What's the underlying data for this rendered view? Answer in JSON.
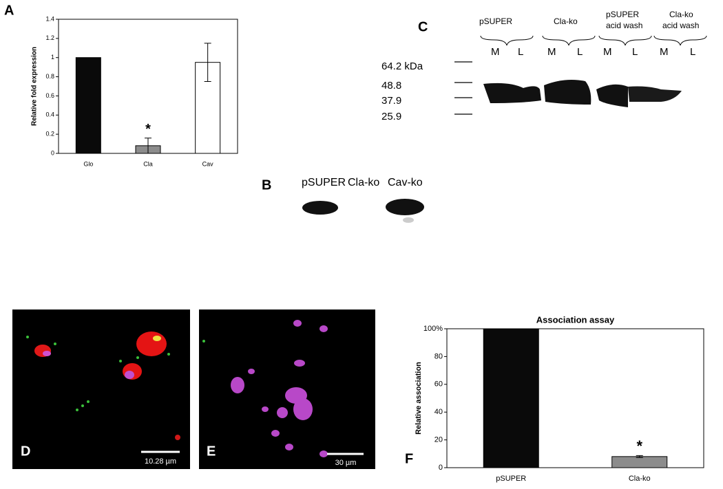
{
  "chart_data": [
    {
      "type": "bar",
      "ylabel": "Relative fold expression",
      "categories": [
        "Glo",
        "Cla",
        "Cav"
      ],
      "values": [
        1,
        0.08,
        0.95
      ],
      "errors": [
        null,
        0.08,
        0.2
      ],
      "colors": [
        "#0a0a0a",
        "#8c8c8c",
        "#ffffff"
      ],
      "ylim": [
        0,
        1.4
      ],
      "yticks": [
        0,
        0.2,
        0.4,
        0.6,
        0.8,
        1,
        1.2,
        1.4
      ],
      "annotations": [
        null,
        "*",
        null
      ]
    },
    {
      "type": "bar",
      "title": "Association assay",
      "ylabel": "Relative association",
      "categories": [
        "pSUPER",
        "Cla-ko"
      ],
      "values": [
        100,
        8
      ],
      "errors": [
        null,
        0.7
      ],
      "colors": [
        "#0a0a0a",
        "#8c8c8c"
      ],
      "ylim": [
        0,
        100
      ],
      "yticks": [
        0,
        20,
        40,
        60,
        80,
        {
          "value": 100,
          "label": "100%"
        }
      ],
      "annotations": [
        null,
        "*"
      ]
    }
  ],
  "panel_labels": [
    "A",
    "B",
    "C",
    "D",
    "E",
    "F"
  ],
  "blot_b": {
    "lanes": [
      "pSUPER",
      "Cla-ko",
      "Cav-ko"
    ]
  },
  "blot_c": {
    "groups": [
      [
        "pSUPER"
      ],
      [
        "Cla-ko"
      ],
      [
        "pSUPER",
        "acid wash"
      ],
      [
        "Cla-ko",
        "acid wash"
      ]
    ],
    "lanes": [
      "M",
      "L",
      "M",
      "L",
      "M",
      "L",
      "M",
      "L"
    ],
    "markers": [
      "64.2 kDa",
      "48.8",
      "37.9",
      "25.9"
    ]
  },
  "micrographs": [
    {
      "scale_bar": "10.28 µm"
    },
    {
      "scale_bar": "30 µm"
    }
  ]
}
